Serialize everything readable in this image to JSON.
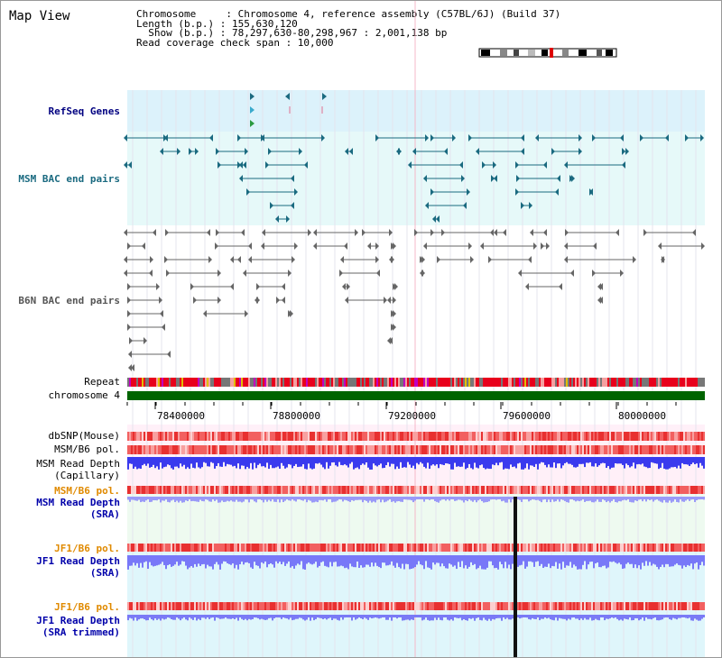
{
  "title": "Map View",
  "info": {
    "line1": "Chromosome     : Chromosome 4, reference assembly (C57BL/6J) (Build 37)",
    "line2": "Length (b.p.) : 155,630,120",
    "line3": "Show (b.p.) : 78,297,630-80,298,967 : 2,001,138 bp",
    "line4": "Read coverage check span : 10,000"
  },
  "tracks": {
    "refseq": "RefSeq Genes",
    "msm_bac": "MSM BAC end pairs",
    "b6n_bac": "B6N BAC end pairs",
    "repeat": "Repeat",
    "chromosome": "chromosome 4",
    "dbsnp": "dbSNP(Mouse)",
    "msm_b6_pol": "MSM/B6 pol.",
    "msm_read_depth_cap_1": "MSM Read Depth",
    "msm_read_depth_cap_2": "(Capillary)",
    "msm_b6_pol_2": "MSM/B6 pol.",
    "msm_read_depth_sra_1": "MSM Read Depth",
    "msm_read_depth_sra_2": "(SRA)",
    "jf1_b6_pol": "JF1/B6 pol.",
    "jf1_read_depth_sra_1": "JF1 Read Depth",
    "jf1_read_depth_sra_2": "(SRA)",
    "jf1_b6_pol_2": "JF1/B6 pol.",
    "jf1_read_depth_trim_1": "JF1 Read Depth",
    "jf1_read_depth_trim_2": "(SRA trimmed)"
  },
  "axis_ticks": [
    "78400000",
    "78800000",
    "79200000",
    "79600000",
    "80000000"
  ],
  "colors": {
    "refseq_bg": "#dcf2fb",
    "bac_bg": "#e6f9f9",
    "feature_teal": "#1a6a80",
    "feature_gray": "#666666",
    "chromosome_green": "#006400",
    "repeat_red": "#e8001c",
    "depth_blue": "#4444ff",
    "pol_red": "#f06060",
    "orange": "#e08a00"
  }
}
